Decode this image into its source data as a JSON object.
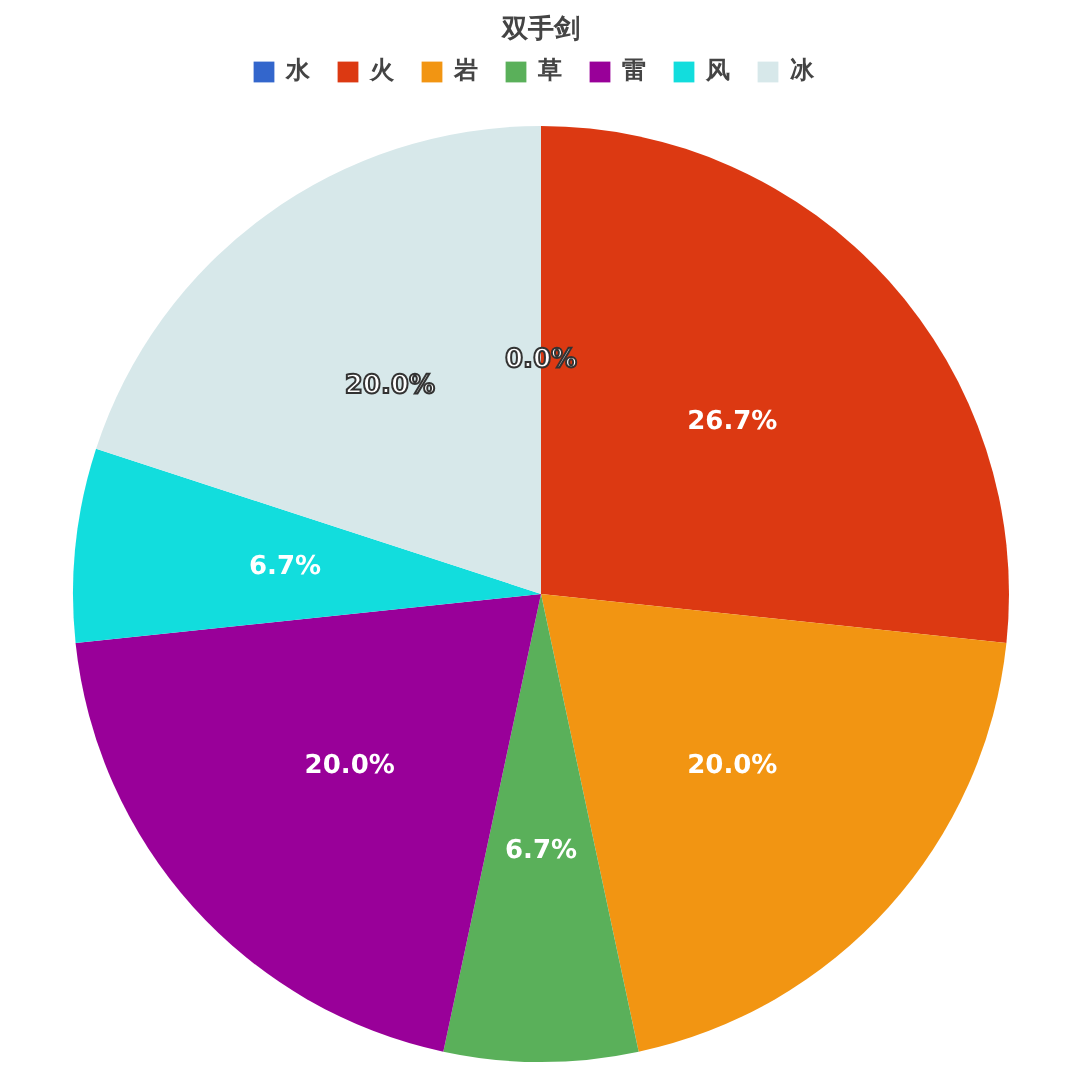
{
  "chart_data": {
    "type": "pie",
    "title": "双手剑",
    "categories": [
      "水",
      "火",
      "岩",
      "草",
      "雷",
      "风",
      "冰"
    ],
    "values": [
      0.0,
      26.7,
      20.0,
      6.7,
      20.0,
      6.7,
      20.0
    ],
    "value_labels": [
      "0.0%",
      "26.7%",
      "20.0%",
      "6.7%",
      "20.0%",
      "6.7%",
      "20.0%"
    ],
    "colors": [
      "#3366cc",
      "#dc3912",
      "#f29512",
      "#5ab05a",
      "#990099",
      "#12dddd",
      "#d7e8ea"
    ],
    "legend": "top"
  }
}
